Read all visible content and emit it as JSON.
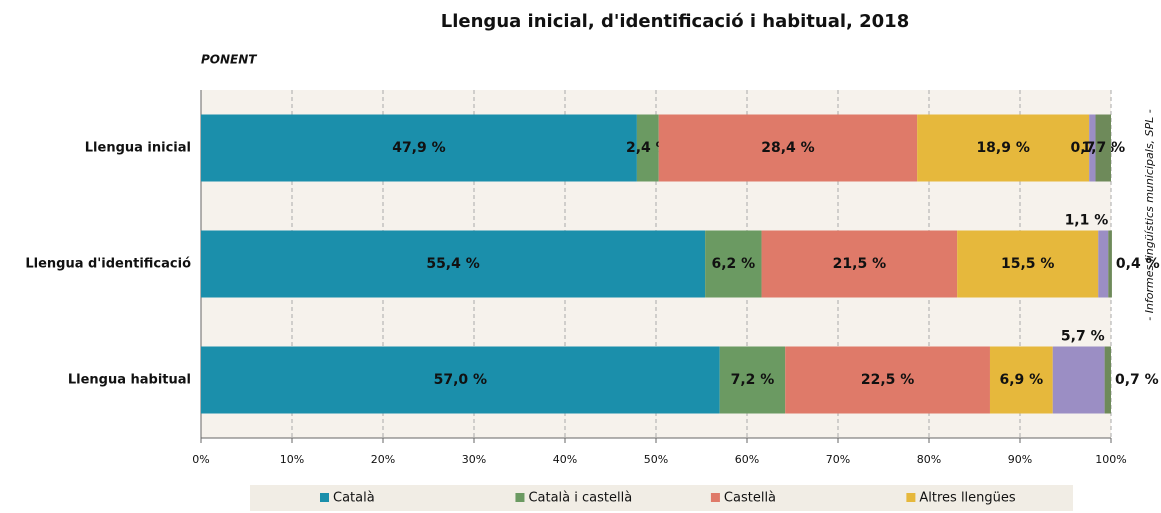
{
  "chart_data": {
    "type": "stacked-barh",
    "title": "Llengua inicial, d'identificació i habitual, 2018",
    "subtitle": "PONENT",
    "side_note": "- Informes lingüístics municipals, SPL -",
    "categories": [
      "Llengua inicial",
      "Llengua d'identificació",
      "Llengua habitual"
    ],
    "series": [
      {
        "name": "Català",
        "color": "#1b8fab",
        "values": [
          47.9,
          55.4,
          57.0
        ],
        "value_labels": [
          "47,9 %",
          "55,4 %",
          "57,0 %"
        ]
      },
      {
        "name": "Català i castellà",
        "color": "#6b9a62",
        "values": [
          2.4,
          6.2,
          7.2
        ],
        "value_labels": [
          "2,4 %",
          "6,2 %",
          "7,2 %"
        ]
      },
      {
        "name": "Castellà",
        "color": "#df7a69",
        "values": [
          28.4,
          21.5,
          22.5
        ],
        "value_labels": [
          "28,4 %",
          "21,5 %",
          "22,5 %"
        ]
      },
      {
        "name": "Altres llengües",
        "color": "#e6b83c",
        "values": [
          18.9,
          15.5,
          6.9
        ],
        "value_labels": [
          "18,9 %",
          "15,5 %",
          "6,9 %"
        ]
      },
      {
        "color": "#9b8ec4",
        "values": [
          0.7,
          1.1,
          5.7
        ],
        "value_labels": [
          "0,7 %",
          "1,1 %",
          "5,7 %"
        ]
      },
      {
        "color": "#6e8a5a",
        "values": [
          1.7,
          0.4,
          0.7
        ],
        "value_labels": [
          "1,7 %",
          "0,4 %",
          "0,7 %"
        ]
      }
    ],
    "xlim": [
      0,
      100
    ],
    "xticks": [
      {
        "value": 0,
        "label": "0%"
      },
      {
        "value": 10,
        "label": "10%"
      },
      {
        "value": 20,
        "label": "20%"
      },
      {
        "value": 30,
        "label": "30%"
      },
      {
        "value": 40,
        "label": "40%"
      },
      {
        "value": 50,
        "label": "50%"
      },
      {
        "value": 60,
        "label": "60%"
      },
      {
        "value": 70,
        "label": "70%"
      },
      {
        "value": 80,
        "label": "80%"
      },
      {
        "value": 90,
        "label": "90%"
      },
      {
        "value": 100,
        "label": "100%"
      }
    ],
    "grid": true
  }
}
